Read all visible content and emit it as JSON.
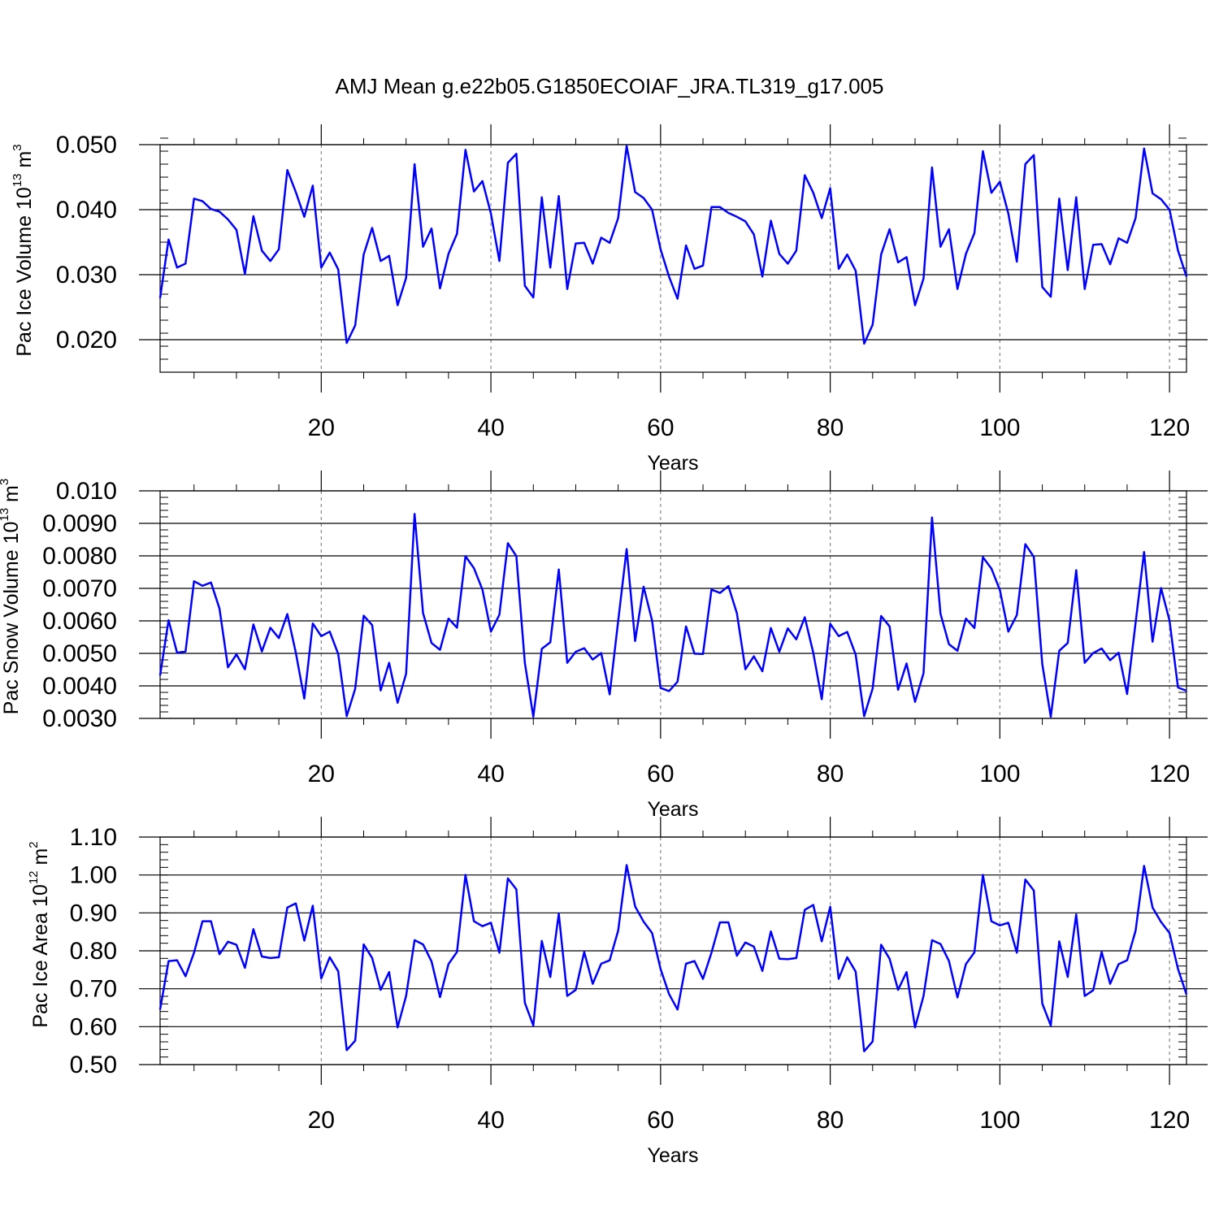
{
  "title": "AMJ Mean g.e22b05.G1850ECOIAF_JRA.TL319_g17.005",
  "chart_data": [
    {
      "type": "line",
      "ylabel": "Pac Ice Volume 10",
      "ylabel_exp": "13",
      "ylabel_unit": " m",
      "ylabel_unit_exp": "3",
      "xlabel": "Years",
      "xlim": [
        1,
        122
      ],
      "ylim": [
        0.015,
        0.05
      ],
      "xticks": [
        20,
        40,
        60,
        80,
        100,
        120
      ],
      "xtick_labels": [
        "20",
        "40",
        "60",
        "80",
        "100",
        "120"
      ],
      "yticks": [
        0.02,
        0.03,
        0.04,
        0.05
      ],
      "ytick_labels": [
        "0.020",
        "0.030",
        "0.040",
        "0.050"
      ],
      "yminor_step": 0.002,
      "x_start": 1,
      "values": [
        0.0264,
        0.0354,
        0.0311,
        0.0317,
        0.0417,
        0.0413,
        0.0401,
        0.0397,
        0.0385,
        0.0369,
        0.0301,
        0.039,
        0.0337,
        0.0321,
        0.0339,
        0.0461,
        0.0427,
        0.0389,
        0.0437,
        0.0311,
        0.0334,
        0.0308,
        0.0195,
        0.0222,
        0.0331,
        0.0372,
        0.0321,
        0.0329,
        0.0253,
        0.0295,
        0.047,
        0.0343,
        0.0371,
        0.0279,
        0.0332,
        0.0363,
        0.0492,
        0.0428,
        0.0444,
        0.0394,
        0.0321,
        0.0472,
        0.0486,
        0.0283,
        0.0265,
        0.0419,
        0.0311,
        0.0421,
        0.0278,
        0.0348,
        0.0349,
        0.0317,
        0.0357,
        0.0349,
        0.0387,
        0.0498,
        0.0427,
        0.0418,
        0.04,
        0.0339,
        0.0297,
        0.0263,
        0.0345,
        0.0309,
        0.0314,
        0.0404,
        0.0404,
        0.0395,
        0.0389,
        0.0382,
        0.0362,
        0.0297,
        0.0383,
        0.0332,
        0.0317,
        0.0337,
        0.0453,
        0.0426,
        0.0387,
        0.0433,
        0.0309,
        0.0331,
        0.0306,
        0.0194,
        0.0223,
        0.0331,
        0.037,
        0.0319,
        0.0327,
        0.0253,
        0.0294,
        0.0465,
        0.0343,
        0.037,
        0.0278,
        0.0332,
        0.0364,
        0.049,
        0.0426,
        0.0443,
        0.0394,
        0.032,
        0.047,
        0.0484,
        0.0281,
        0.0266,
        0.0417,
        0.0307,
        0.0419,
        0.0278,
        0.0346,
        0.0347,
        0.0316,
        0.0356,
        0.0349,
        0.0387,
        0.0494,
        0.0425,
        0.0416,
        0.04,
        0.0337,
        0.0297
      ]
    },
    {
      "type": "line",
      "ylabel": "Pac Snow Volume 10",
      "ylabel_exp": "13",
      "ylabel_unit": " m",
      "ylabel_unit_exp": "3",
      "xlabel": "Years",
      "xlim": [
        1,
        122
      ],
      "ylim": [
        0.003,
        0.01
      ],
      "xticks": [
        20,
        40,
        60,
        80,
        100,
        120
      ],
      "xtick_labels": [
        "20",
        "40",
        "60",
        "80",
        "100",
        "120"
      ],
      "yticks": [
        0.003,
        0.004,
        0.005,
        0.006,
        0.007,
        0.008,
        0.009,
        0.01
      ],
      "ytick_labels": [
        "0.0030",
        "0.0040",
        "0.0050",
        "0.0060",
        "0.0070",
        "0.0080",
        "0.0090",
        "0.010"
      ],
      "yminor_step": 0.0002,
      "x_start": 1,
      "values": [
        0.00432,
        0.00602,
        0.00502,
        0.00506,
        0.00722,
        0.00708,
        0.00718,
        0.00638,
        0.00457,
        0.00497,
        0.00451,
        0.00589,
        0.00506,
        0.00579,
        0.00547,
        0.00621,
        0.00502,
        0.00361,
        0.00592,
        0.00553,
        0.00567,
        0.00498,
        0.00307,
        0.00391,
        0.00616,
        0.00587,
        0.00386,
        0.00471,
        0.00348,
        0.00437,
        0.00929,
        0.00624,
        0.00532,
        0.00511,
        0.00607,
        0.00579,
        0.00799,
        0.00762,
        0.00696,
        0.00567,
        0.00619,
        0.00839,
        0.00799,
        0.00471,
        0.00305,
        0.00514,
        0.00534,
        0.00758,
        0.00471,
        0.00505,
        0.00516,
        0.00481,
        0.00501,
        0.00374,
        0.00599,
        0.00821,
        0.00538,
        0.00705,
        0.00601,
        0.00394,
        0.00384,
        0.00413,
        0.00583,
        0.00499,
        0.00498,
        0.00696,
        0.00686,
        0.00707,
        0.00623,
        0.00451,
        0.00491,
        0.00445,
        0.00578,
        0.00505,
        0.00577,
        0.00543,
        0.00611,
        0.00502,
        0.00359,
        0.00591,
        0.00553,
        0.00566,
        0.00496,
        0.00307,
        0.00392,
        0.00615,
        0.00583,
        0.00388,
        0.00469,
        0.00351,
        0.00439,
        0.00918,
        0.00622,
        0.00528,
        0.00508,
        0.00607,
        0.00578,
        0.00796,
        0.00761,
        0.00695,
        0.00567,
        0.00618,
        0.00836,
        0.00797,
        0.00467,
        0.00305,
        0.00508,
        0.00532,
        0.00756,
        0.00471,
        0.00501,
        0.00515,
        0.00479,
        0.00502,
        0.00375,
        0.00594,
        0.00812,
        0.00536,
        0.00701,
        0.00601,
        0.00395,
        0.00385
      ]
    },
    {
      "type": "line",
      "ylabel": "Pac Ice Area 10",
      "ylabel_exp": "12",
      "ylabel_unit": " m",
      "ylabel_unit_exp": "2",
      "xlabel": "Years",
      "xlim": [
        1,
        122
      ],
      "ylim": [
        0.5,
        1.1
      ],
      "xticks": [
        20,
        40,
        60,
        80,
        100,
        120
      ],
      "xtick_labels": [
        "20",
        "40",
        "60",
        "80",
        "100",
        "120"
      ],
      "yticks": [
        0.5,
        0.6,
        0.7,
        0.8,
        0.9,
        1.0,
        1.1
      ],
      "ytick_labels": [
        "0.50",
        "0.60",
        "0.70",
        "0.80",
        "0.90",
        "1.00",
        "1.10"
      ],
      "yminor_step": 0.02,
      "x_start": 1,
      "values": [
        0.645,
        0.773,
        0.775,
        0.733,
        0.795,
        0.878,
        0.878,
        0.791,
        0.824,
        0.816,
        0.755,
        0.857,
        0.785,
        0.781,
        0.783,
        0.914,
        0.925,
        0.827,
        0.919,
        0.727,
        0.783,
        0.746,
        0.538,
        0.563,
        0.817,
        0.781,
        0.697,
        0.744,
        0.598,
        0.681,
        0.828,
        0.817,
        0.772,
        0.678,
        0.765,
        0.797,
        1.0,
        0.878,
        0.865,
        0.874,
        0.795,
        0.991,
        0.962,
        0.663,
        0.603,
        0.826,
        0.731,
        0.898,
        0.681,
        0.697,
        0.797,
        0.713,
        0.766,
        0.775,
        0.853,
        1.026,
        0.917,
        0.877,
        0.847,
        0.752,
        0.686,
        0.645,
        0.766,
        0.773,
        0.726,
        0.795,
        0.875,
        0.875,
        0.787,
        0.822,
        0.811,
        0.747,
        0.851,
        0.779,
        0.778,
        0.781,
        0.908,
        0.921,
        0.825,
        0.916,
        0.726,
        0.783,
        0.745,
        0.535,
        0.561,
        0.816,
        0.779,
        0.697,
        0.744,
        0.598,
        0.681,
        0.828,
        0.818,
        0.773,
        0.677,
        0.765,
        0.796,
        1.0,
        0.878,
        0.867,
        0.874,
        0.795,
        0.988,
        0.959,
        0.661,
        0.603,
        0.825,
        0.731,
        0.896,
        0.681,
        0.696,
        0.797,
        0.713,
        0.765,
        0.775,
        0.853,
        1.024,
        0.914,
        0.876,
        0.847,
        0.752,
        0.685
      ]
    }
  ]
}
